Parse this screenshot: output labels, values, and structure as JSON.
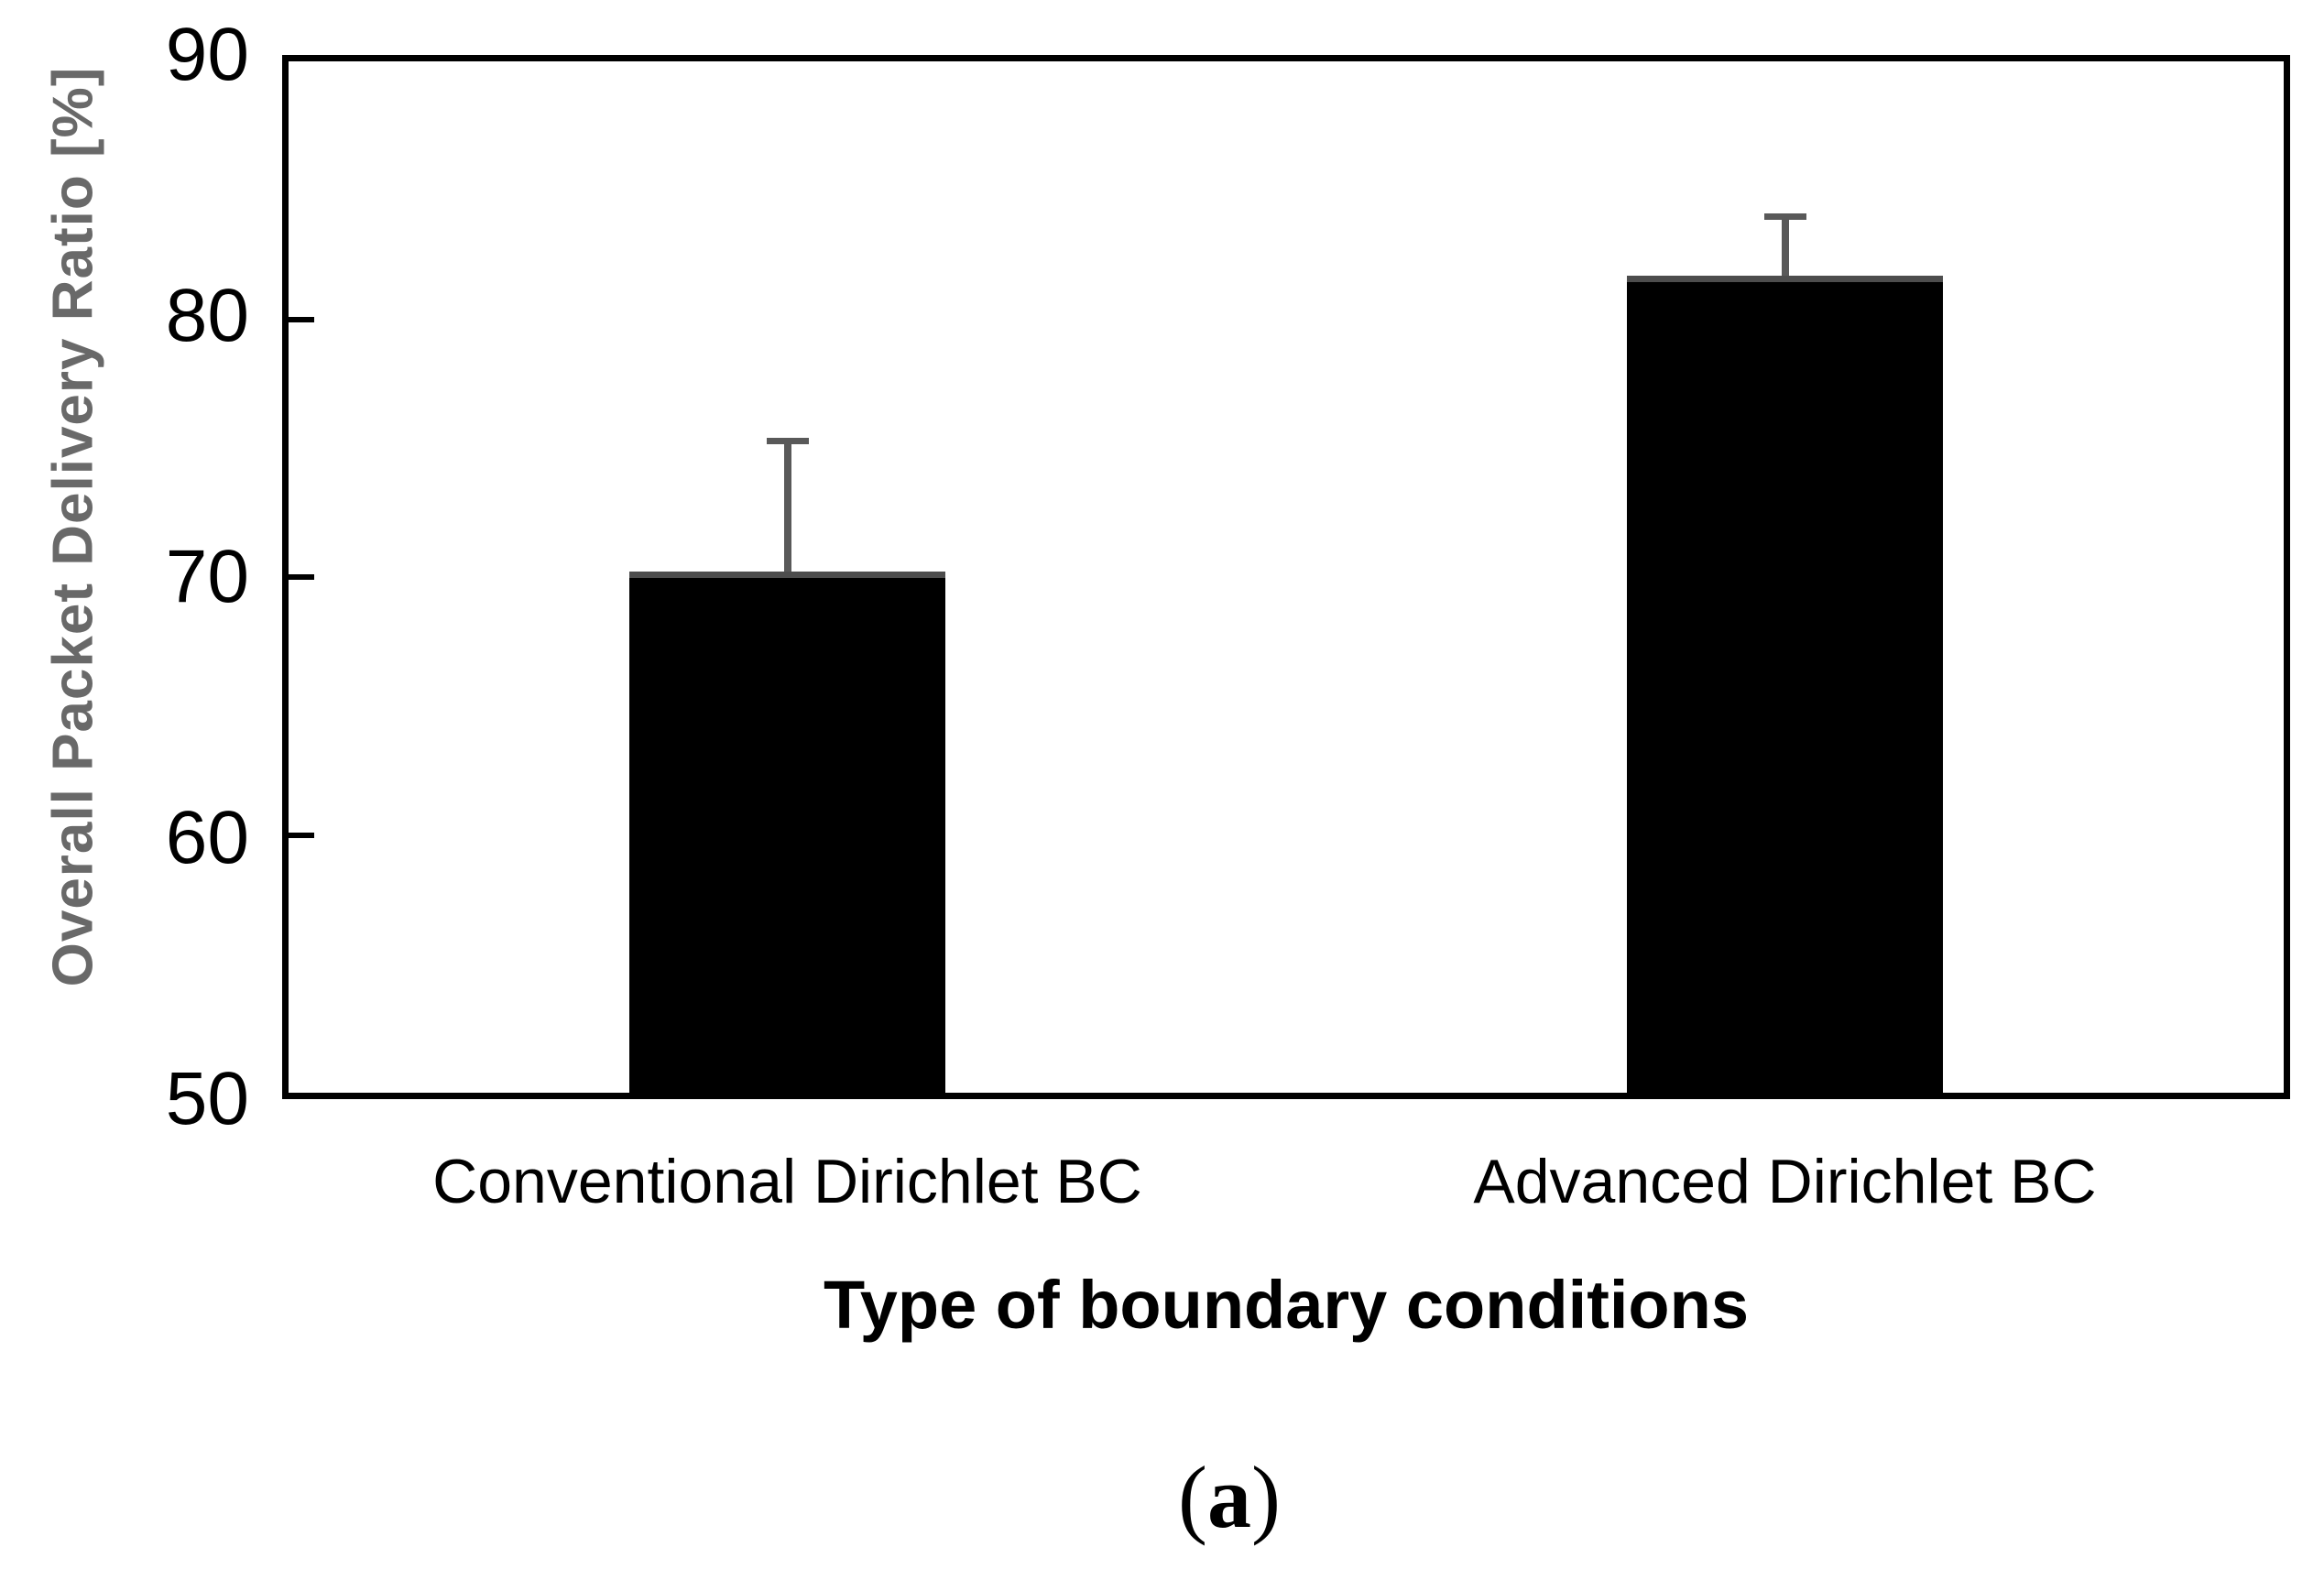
{
  "figure": {
    "caption": {
      "open": "(",
      "letter": "a",
      "close": ")"
    }
  },
  "chart_data": {
    "type": "bar",
    "title": "",
    "categories": [
      "Conventional Dirichlet BC",
      "Advanced Dirichlet BC"
    ],
    "values": [
      70.2,
      81.7
    ],
    "errors_plus": [
      5.2,
      2.4
    ],
    "error_tops": [
      75.4,
      84.1
    ],
    "xlabel": "Type of boundary conditions",
    "ylabel": "Overall Packet Delivery Ratio [%]",
    "ylim": [
      50,
      90
    ],
    "yticks": [
      90,
      80,
      70,
      60,
      50
    ],
    "grid": false,
    "legend": "none",
    "bar_color": "#000000",
    "bar_top_edge_color": "#4d4d4d",
    "error_bar_color": "#595959",
    "axis_color": "#000000",
    "ylabel_color": "#696969",
    "background_color": "#ffffff"
  }
}
